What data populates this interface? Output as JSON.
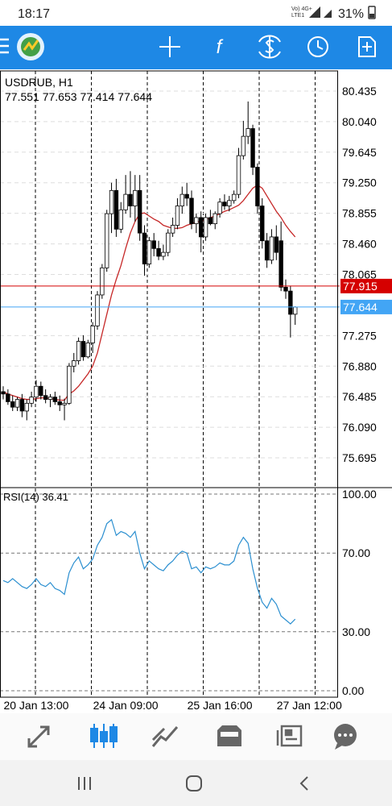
{
  "status_bar": {
    "time": "18:17",
    "network": "Vo) 4G+",
    "network_line2": "LTE1",
    "battery": "31%"
  },
  "chart_data": [
    {
      "type": "candlestick",
      "title": "USDRUB, H1",
      "categories": [
        null,
        null,
        null,
        null,
        null,
        null,
        null,
        "20 Jan 13:00",
        null,
        null,
        null,
        null,
        null,
        null,
        null,
        null,
        null,
        null,
        null,
        null,
        null,
        null,
        null,
        null,
        null,
        null,
        "24 Jan 09:00",
        null,
        null,
        null,
        null,
        null,
        null,
        null,
        null,
        null,
        null,
        null,
        null,
        null,
        null,
        null,
        null,
        null,
        null,
        null,
        "25 Jan 16:00",
        null,
        null,
        null,
        null,
        null,
        null,
        null,
        null,
        null,
        null,
        null,
        null,
        null,
        null,
        null,
        null,
        null,
        null,
        "27 Jan 12:00"
      ],
      "open": [
        76.55,
        76.52,
        76.42,
        76.35,
        76.45,
        76.3,
        76.4,
        76.48,
        76.62,
        76.5,
        76.45,
        76.48,
        76.42,
        76.38,
        76.4,
        76.88,
        76.95,
        77.2,
        77.0,
        77.18,
        77.4,
        77.8,
        78.15,
        78.85,
        79.15,
        78.65,
        78.9,
        79.1,
        78.95,
        79.15,
        78.6,
        78.2,
        78.5,
        78.4,
        78.3,
        78.35,
        78.6,
        78.7,
        78.95,
        79.1,
        79.05,
        78.72,
        78.8,
        78.55,
        78.8,
        78.72,
        78.85,
        79.0,
        78.95,
        79.02,
        79.1,
        79.6,
        79.85,
        79.95,
        79.45,
        78.95,
        78.5,
        78.25,
        78.55,
        78.5,
        77.9,
        77.85,
        77.551,
        null,
        null,
        null
      ],
      "high": [
        76.62,
        76.58,
        76.5,
        76.48,
        76.52,
        76.45,
        76.55,
        76.7,
        76.68,
        76.58,
        76.52,
        76.55,
        76.5,
        76.46,
        76.92,
        77.05,
        77.25,
        77.28,
        77.22,
        77.45,
        77.85,
        78.2,
        78.9,
        79.25,
        79.3,
        79.0,
        79.35,
        79.4,
        79.35,
        79.35,
        78.7,
        78.55,
        78.6,
        78.5,
        78.45,
        78.65,
        78.8,
        79.05,
        79.2,
        79.25,
        79.15,
        78.85,
        78.88,
        78.85,
        78.9,
        78.88,
        79.05,
        79.1,
        79.08,
        79.15,
        79.7,
        80.05,
        80.3,
        80.0,
        79.5,
        79.05,
        78.6,
        78.65,
        78.7,
        78.75,
        78.0,
        77.92,
        77.653,
        null,
        null,
        null
      ],
      "low": [
        76.45,
        76.38,
        76.3,
        76.3,
        76.22,
        76.18,
        76.35,
        76.42,
        76.45,
        76.4,
        76.35,
        76.38,
        76.3,
        76.18,
        76.38,
        76.8,
        76.9,
        76.95,
        76.98,
        77.05,
        77.35,
        77.75,
        78.1,
        78.6,
        78.55,
        78.6,
        78.85,
        78.8,
        78.75,
        78.5,
        78.05,
        78.15,
        78.3,
        78.25,
        78.25,
        78.3,
        78.55,
        78.65,
        78.85,
        78.95,
        78.65,
        78.6,
        78.35,
        78.5,
        78.7,
        78.65,
        78.8,
        78.9,
        78.88,
        78.98,
        79.05,
        79.55,
        79.75,
        79.35,
        78.85,
        78.4,
        78.15,
        78.2,
        78.25,
        77.85,
        77.75,
        77.25,
        77.414,
        null,
        null,
        null
      ],
      "close": [
        76.52,
        76.42,
        76.35,
        76.45,
        76.3,
        76.4,
        76.48,
        76.62,
        76.5,
        76.45,
        76.48,
        76.42,
        76.38,
        76.4,
        76.88,
        76.95,
        77.2,
        77.0,
        77.18,
        77.4,
        77.8,
        78.15,
        78.85,
        79.15,
        78.65,
        78.9,
        79.1,
        78.95,
        79.15,
        78.6,
        78.2,
        78.5,
        78.4,
        78.3,
        78.35,
        78.6,
        78.7,
        78.95,
        79.1,
        79.05,
        78.72,
        78.8,
        78.55,
        78.8,
        78.72,
        78.85,
        79.0,
        78.95,
        79.02,
        79.1,
        79.6,
        79.85,
        79.95,
        79.45,
        78.95,
        78.5,
        78.25,
        78.55,
        78.35,
        77.9,
        77.85,
        77.55,
        77.644,
        null,
        null,
        null
      ],
      "up_color": "#ffffff",
      "down_color": "#000000",
      "ma": {
        "color": "#c62828",
        "values": [
          76.55,
          76.52,
          76.5,
          76.48,
          76.46,
          76.45,
          76.45,
          76.46,
          76.47,
          76.47,
          76.46,
          76.45,
          76.44,
          76.44,
          76.52,
          76.56,
          76.62,
          76.7,
          76.78,
          76.88,
          77.05,
          77.3,
          77.55,
          77.8,
          78.0,
          78.18,
          78.4,
          78.6,
          78.75,
          78.85,
          78.86,
          78.82,
          78.78,
          78.75,
          78.7,
          78.68,
          78.66,
          78.66,
          78.67,
          78.7,
          78.72,
          78.74,
          78.75,
          78.77,
          78.8,
          78.82,
          78.85,
          78.88,
          78.9,
          78.93,
          78.96,
          79.02,
          79.1,
          79.18,
          79.22,
          79.18,
          79.08,
          78.98,
          78.88,
          78.8,
          78.7,
          78.62,
          78.55,
          null,
          null,
          null
        ]
      },
      "price_lines": [
        {
          "value": 77.915,
          "color": "#d50000"
        },
        {
          "value": 77.644,
          "color": "#42a5f5"
        }
      ],
      "ylim": [
        75.31,
        80.695
      ],
      "yticks": [
        80.435,
        {
          "value": 80.04,
          "label": "80.040"
        },
        79.645,
        {
          "value": 79.25,
          "label": "79.250"
        },
        78.855,
        {
          "value": 78.46,
          "label": "78.460"
        },
        78.065,
        77.275,
        {
          "value": 76.88,
          "label": "76.880"
        },
        76.485,
        {
          "value": 76.09,
          "label": "76.090"
        },
        75.695
      ],
      "grid": true
    },
    {
      "type": "line",
      "title": "RSI(14)",
      "color": "#2b8fd0",
      "values": [
        56,
        55,
        57,
        55,
        53,
        52,
        54,
        57,
        54,
        53,
        55,
        52,
        51,
        49,
        60,
        65,
        68,
        62,
        64,
        67,
        74,
        78,
        85,
        87,
        79,
        81,
        80,
        78,
        81,
        70,
        62,
        66,
        64,
        62,
        61,
        64,
        66,
        69,
        71,
        70,
        62,
        63,
        60,
        63,
        62,
        63,
        65,
        64,
        64,
        66,
        74,
        78,
        75,
        62,
        52,
        45,
        42,
        47,
        44,
        38,
        36,
        34,
        36.41,
        null,
        null,
        null
      ],
      "ylim": [
        -3.3,
        103.3
      ],
      "yticks": [
        {
          "value": 100,
          "label": "100.00"
        },
        {
          "value": 70,
          "label": "70.00"
        },
        {
          "value": 30,
          "label": "30.00"
        },
        {
          "value": 0,
          "label": "0.00"
        }
      ],
      "grid": true
    }
  ]
}
